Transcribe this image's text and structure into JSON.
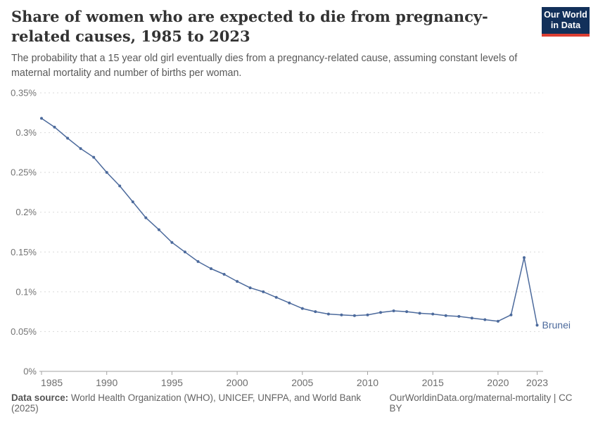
{
  "header": {
    "title": "Share of women who are expected to die from pregnancy-related causes, 1985 to 2023",
    "subtitle": "The probability that a 15 year old girl eventually dies from a pregnancy-related cause, assuming constant levels of maternal mortality and number of births per woman.",
    "logo": {
      "line1": "Our World",
      "line2": "in Data"
    }
  },
  "chart_data": {
    "type": "line",
    "title": "Share of women who are expected to die from pregnancy-related causes, 1985 to 2023",
    "entity_label": "Brunei",
    "series": [
      {
        "name": "Brunei",
        "color": "#4C6A9C",
        "x": [
          1985,
          1986,
          1987,
          1988,
          1989,
          1990,
          1991,
          1992,
          1993,
          1994,
          1995,
          1996,
          1997,
          1998,
          1999,
          2000,
          2001,
          2002,
          2003,
          2004,
          2005,
          2006,
          2007,
          2008,
          2009,
          2010,
          2011,
          2012,
          2013,
          2014,
          2015,
          2016,
          2017,
          2018,
          2019,
          2020,
          2021,
          2022,
          2023
        ],
        "values": [
          0.318,
          0.307,
          0.293,
          0.28,
          0.269,
          0.25,
          0.233,
          0.213,
          0.193,
          0.178,
          0.162,
          0.15,
          0.138,
          0.129,
          0.122,
          0.113,
          0.105,
          0.1,
          0.093,
          0.086,
          0.079,
          0.075,
          0.072,
          0.071,
          0.07,
          0.071,
          0.074,
          0.076,
          0.075,
          0.073,
          0.072,
          0.07,
          0.069,
          0.067,
          0.065,
          0.063,
          0.071,
          0.143,
          0.058
        ]
      }
    ],
    "x_ticks": [
      1985,
      1990,
      1995,
      2000,
      2005,
      2010,
      2015,
      2020,
      2023
    ],
    "y_ticks": [
      0,
      0.05,
      0.1,
      0.15,
      0.2,
      0.25,
      0.3,
      0.35
    ],
    "y_tick_labels": [
      "0%",
      "0.05%",
      "0.1%",
      "0.15%",
      "0.2%",
      "0.25%",
      "0.3%",
      "0.35%"
    ],
    "xlim": [
      1985,
      2023
    ],
    "ylim": [
      0,
      0.35
    ],
    "y_format": "percent",
    "grid": "horizontal-dashed",
    "legend_position": "end-of-line-label"
  },
  "footer": {
    "source_label": "Data source:",
    "source_text": " World Health Organization (WHO), UNICEF, UNFPA, and World Bank (2025)",
    "license_text": "OurWorldinData.org/maternal-mortality | CC BY"
  },
  "colors": {
    "line": "#4C6A9C",
    "grid": "#d9d9d9",
    "axis": "#a3a3a3",
    "y_label": "#737373",
    "x_label": "#6e6e6e",
    "title": "#333333",
    "subtitle": "#595959",
    "logo_bg": "#12305a",
    "logo_red": "#dc3e32"
  }
}
